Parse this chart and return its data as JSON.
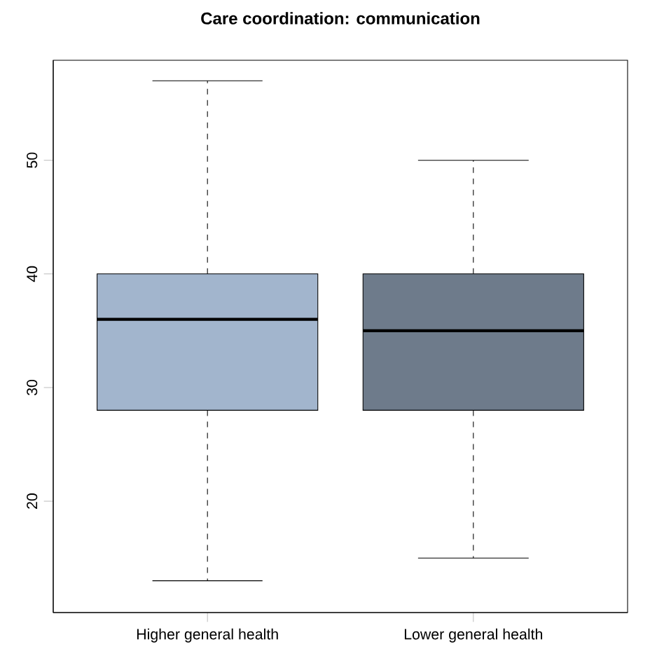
{
  "chart_data": {
    "type": "box",
    "title": "Care coordination: communication",
    "categories": [
      "Higher general health",
      "Lower general health"
    ],
    "colors": [
      "#a2b5cd",
      "#6e7b8b"
    ],
    "boxes": [
      {
        "low": 13,
        "q1": 28,
        "median": 36,
        "q3": 40,
        "high": 57
      },
      {
        "low": 15,
        "q1": 28,
        "median": 35,
        "q3": 40,
        "high": 50
      }
    ],
    "ylim": [
      10.2,
      58.8
    ],
    "yticks": [
      20,
      30,
      40,
      50
    ],
    "grid": false
  }
}
